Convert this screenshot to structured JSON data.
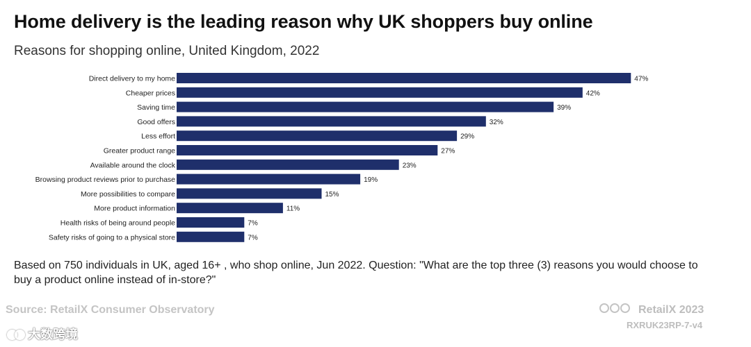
{
  "title": "Home delivery is the leading reason why UK shoppers buy online",
  "subtitle": "Reasons for shopping online, United Kingdom, 2022",
  "chart_data": {
    "type": "bar",
    "orientation": "horizontal",
    "bar_color": "#1f2f6b",
    "categories": [
      "Direct delivery to my home",
      "Cheaper prices",
      "Saving time",
      "Good offers",
      "Less effort",
      "Greater product range",
      "Available around the clock",
      "Browsing product reviews prior to purchase",
      "More possibilities to compare",
      "More product information",
      "Health risks of being around people",
      "Safety risks of going to a physical store"
    ],
    "values": [
      47,
      42,
      39,
      32,
      29,
      27,
      23,
      19,
      15,
      11,
      7,
      7
    ],
    "value_labels": [
      "47%",
      "42%",
      "39%",
      "32%",
      "29%",
      "27%",
      "23%",
      "19%",
      "15%",
      "11%",
      "7%",
      "7%"
    ],
    "xlim": [
      0,
      50
    ],
    "grid": false
  },
  "note": "Based on 750 individuals in UK, aged 16+ , who shop online, Jun 2022. Question: \"What are the top three (3) reasons you would choose to buy a product online instead of in-store?\"",
  "footer": {
    "source": "Source: RetailX Consumer Observatory",
    "license_icons": [
      "cc-icon",
      "by-icon",
      "nd-icon"
    ],
    "brand": "RetailX 2023",
    "code": "RXRUK23RP-7-v4"
  },
  "watermark": {
    "text": "大数跨境"
  }
}
